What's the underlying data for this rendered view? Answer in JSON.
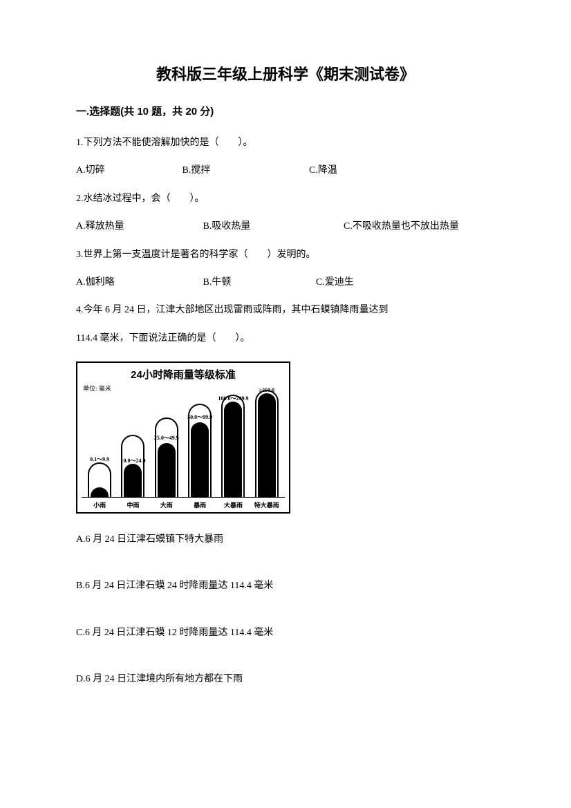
{
  "title": "教科版三年级上册科学《期末测试卷》",
  "section1": {
    "header": "一.选择题(共 10 题，共 20 分)",
    "q1": {
      "text": "1.下列方法不能使溶解加快的是（　　）。",
      "a": "A.切碎",
      "b": "B.搅拌",
      "c": "C.降温"
    },
    "q2": {
      "text": "2.水结冰过程中，会（　　）。",
      "a": "A.释放热量",
      "b": "B.吸收热量",
      "c": "C.不吸收热量也不放出热量"
    },
    "q3": {
      "text": "3.世界上第一支温度计是著名的科学家（　　）发明的。",
      "a": "A.伽利略",
      "b": "B.牛顿",
      "c": "C.爱迪生"
    },
    "q4": {
      "line1": "4.今年 6 月 24 日，江津大部地区出现雷雨或阵雨，其中石蟆镇降雨量达到",
      "line2": "114.4 毫米，下面说法正确的是（　　）。",
      "optA": "A.6 月 24 日江津石蟆镇下特大暴雨",
      "optB": "B.6 月 24 日江津石蟆 24 时降雨量达 114.4 毫米",
      "optC": "C.6 月 24 日江津石蟆 12 时降雨量达 114.4 毫米",
      "optD": "D.6 月 24 日江津境内所有地方都在下雨"
    }
  },
  "chart": {
    "title": "24小时降雨量等级标准",
    "unit": "单位: 毫米",
    "bars": [
      {
        "label": "0.1～9.9",
        "outer_h": 50,
        "fill_h": 14,
        "label_top": -12,
        "xlab": "小雨"
      },
      {
        "label": "10.0～24.9",
        "outer_h": 90,
        "fill_h": 48,
        "label_top": 30,
        "xlab": "中雨"
      },
      {
        "label": "25.0～49.9",
        "outer_h": 115,
        "fill_h": 78,
        "label_top": 22,
        "xlab": "大雨"
      },
      {
        "label": "50.0～99.9",
        "outer_h": 135,
        "fill_h": 108,
        "label_top": 12,
        "xlab": "暴雨"
      },
      {
        "label": "100.0～249.9",
        "outer_h": 148,
        "fill_h": 138,
        "label_top": -2,
        "xlab": "大暴雨"
      },
      {
        "label": "≥250.0",
        "outer_h": 155,
        "fill_h": 150,
        "label_top": -6,
        "xlab": "特大暴雨"
      }
    ],
    "colors": {
      "border": "#000000",
      "fill": "#000000",
      "bg": "#ffffff"
    }
  }
}
